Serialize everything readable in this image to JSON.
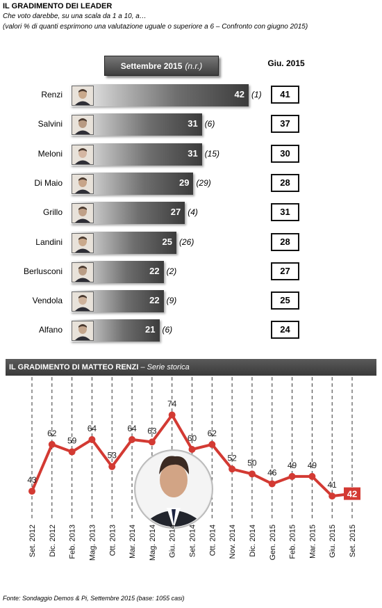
{
  "header": {
    "title": "IL GRADIMENTO DEI LEADER",
    "subtitle": "Che voto darebbe, su una scala da 1 a 10, a…",
    "note": "(valori % di quanti esprimono una valutazione uguale o superiore a 6 – Confronto con giugno 2015)"
  },
  "leaders_chart": {
    "column_header_main": "Settembre 2015",
    "column_header_nr": "(n.r.)",
    "column_header_giu": "Giu. 2015"
  },
  "chart_data": [
    {
      "type": "bar",
      "orientation": "horizontal",
      "title": "IL GRADIMENTO DEI LEADER",
      "categories": [
        "Renzi",
        "Salvini",
        "Meloni",
        "Di Maio",
        "Grillo",
        "Landini",
        "Berlusconi",
        "Vendola",
        "Alfano"
      ],
      "series": [
        {
          "name": "Settembre 2015",
          "values": [
            42,
            31,
            31,
            29,
            27,
            25,
            22,
            22,
            21
          ]
        },
        {
          "name": "Giu. 2015",
          "values": [
            41,
            37,
            30,
            28,
            31,
            28,
            27,
            25,
            24
          ]
        }
      ],
      "nr": [
        "(1)",
        "(6)",
        "(15)",
        "(29)",
        "(4)",
        "(26)",
        "(2)",
        "(9)",
        "(6)"
      ]
    },
    {
      "type": "line",
      "title": "IL GRADIMENTO DI MATTEO RENZI – Serie storica",
      "categories": [
        "Set. 2012",
        "Dic. 2012",
        "Feb. 2013",
        "Mag. 2013",
        "Ott. 2013",
        "Mar. 2014",
        "Mag. 2014",
        "Giu. 2014",
        "Set. 2014",
        "Ott. 2014",
        "Nov. 2014",
        "Dic. 2014",
        "Gen. 2015",
        "Feb. 2015",
        "Mar. 2015",
        "Giu. 2015",
        "Set. 2015"
      ],
      "values": [
        43,
        62,
        59,
        64,
        53,
        64,
        63,
        74,
        60,
        62,
        52,
        50,
        46,
        49,
        49,
        41,
        42
      ],
      "ylim": [
        30,
        90
      ],
      "color": "#d33a33",
      "grid": "vertical dashed"
    }
  ],
  "trend_chart": {
    "title_main": "IL GRADIMENTO DI MATTEO RENZI",
    "title_suffix": " – Serie storica",
    "photo_icon": "person-portrait-icon"
  },
  "footer": {
    "source": "Fonte: Sondaggio Demos & Pi, Settembre 2015 (base: 1055 casi)"
  },
  "colors": {
    "line": "#d33a33",
    "last_label_bg": "#d33a33",
    "bar_dark": "#3c3c3c"
  }
}
